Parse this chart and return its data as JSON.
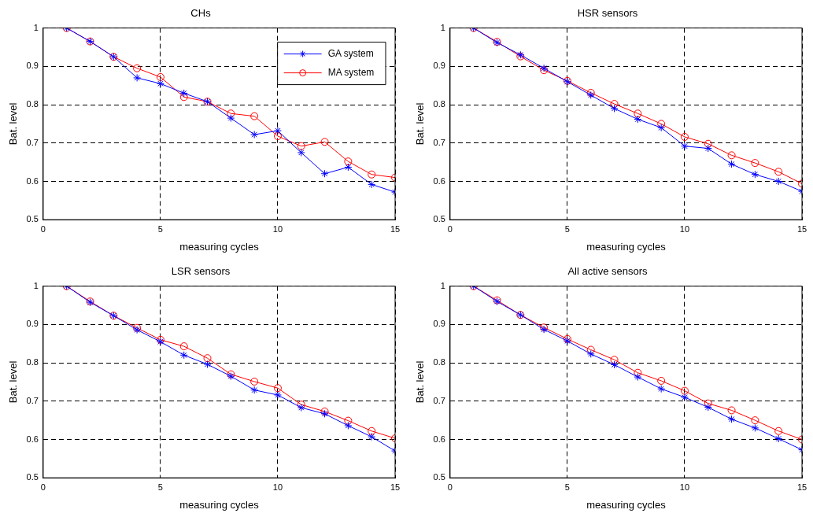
{
  "chart_data": [
    {
      "type": "line",
      "title": "CHs",
      "xlabel": "measuring cycles",
      "ylabel": "Bat. level",
      "x": [
        1,
        2,
        3,
        4,
        5,
        6,
        7,
        8,
        9,
        10,
        11,
        12,
        13,
        14,
        15
      ],
      "xlim": [
        0,
        15
      ],
      "xticks": [
        0,
        5,
        10,
        15
      ],
      "ylim": [
        0.5,
        1
      ],
      "yticks": [
        0.5,
        0.6,
        0.7,
        0.8,
        0.9,
        1
      ],
      "grid": true,
      "legend": "top right",
      "series": [
        {
          "name": "GA system",
          "color": "#0000ff",
          "marker": "cross",
          "values": [
            1,
            0.965,
            0.925,
            0.87,
            0.855,
            0.83,
            0.808,
            0.765,
            0.722,
            0.732,
            0.675,
            0.62,
            0.637,
            0.592,
            0.572
          ]
        },
        {
          "name": "MA system",
          "color": "#ff0000",
          "marker": "circle",
          "values": [
            1,
            0.965,
            0.925,
            0.895,
            0.872,
            0.82,
            0.808,
            0.777,
            0.77,
            0.718,
            0.692,
            0.703,
            0.652,
            0.618,
            0.61
          ]
        }
      ]
    },
    {
      "type": "line",
      "title": "HSR sensors",
      "xlabel": "measuring cycles",
      "ylabel": "Bat. level",
      "x": [
        1,
        2,
        3,
        4,
        5,
        6,
        7,
        8,
        9,
        10,
        11,
        12,
        13,
        14,
        15
      ],
      "xlim": [
        0,
        15
      ],
      "xticks": [
        0,
        5,
        10,
        15
      ],
      "ylim": [
        0.5,
        1
      ],
      "yticks": [
        0.5,
        0.6,
        0.7,
        0.8,
        0.9,
        1
      ],
      "grid": true,
      "series": [
        {
          "color": "#0000ff",
          "marker": "cross",
          "values": [
            1,
            0.962,
            0.93,
            0.895,
            0.86,
            0.825,
            0.79,
            0.762,
            0.74,
            0.692,
            0.686,
            0.645,
            0.618,
            0.6,
            0.574
          ]
        },
        {
          "color": "#ff0000",
          "marker": "circle",
          "values": [
            1,
            0.964,
            0.926,
            0.89,
            0.862,
            0.831,
            0.802,
            0.777,
            0.75,
            0.716,
            0.698,
            0.668,
            0.648,
            0.625,
            0.594
          ]
        }
      ]
    },
    {
      "type": "line",
      "title": "LSR sensors",
      "xlabel": "measuring cycles",
      "ylabel": "Bat. level",
      "x": [
        1,
        2,
        3,
        4,
        5,
        6,
        7,
        8,
        9,
        10,
        11,
        12,
        13,
        14,
        15
      ],
      "xlim": [
        0,
        15
      ],
      "xticks": [
        0,
        5,
        10,
        15
      ],
      "ylim": [
        0.5,
        1
      ],
      "yticks": [
        0.5,
        0.6,
        0.7,
        0.8,
        0.9,
        1
      ],
      "grid": true,
      "series": [
        {
          "color": "#0000ff",
          "marker": "cross",
          "values": [
            1,
            0.958,
            0.923,
            0.886,
            0.855,
            0.82,
            0.796,
            0.765,
            0.729,
            0.716,
            0.683,
            0.667,
            0.636,
            0.607,
            0.57
          ]
        },
        {
          "color": "#ff0000",
          "marker": "circle",
          "values": [
            1,
            0.96,
            0.923,
            0.891,
            0.86,
            0.843,
            0.812,
            0.77,
            0.751,
            0.734,
            0.691,
            0.673,
            0.649,
            0.622,
            0.603
          ]
        }
      ]
    },
    {
      "type": "line",
      "title": "All active sensors",
      "xlabel": "measuring cycles",
      "ylabel": "Bat. level",
      "x": [
        1,
        2,
        3,
        4,
        5,
        6,
        7,
        8,
        9,
        10,
        11,
        12,
        13,
        14,
        15
      ],
      "xlim": [
        0,
        15
      ],
      "xticks": [
        0,
        5,
        10,
        15
      ],
      "ylim": [
        0.5,
        1
      ],
      "yticks": [
        0.5,
        0.6,
        0.7,
        0.8,
        0.9,
        1
      ],
      "grid": true,
      "series": [
        {
          "color": "#0000ff",
          "marker": "cross",
          "values": [
            1,
            0.96,
            0.925,
            0.887,
            0.857,
            0.823,
            0.795,
            0.763,
            0.732,
            0.71,
            0.684,
            0.653,
            0.63,
            0.602,
            0.573
          ]
        },
        {
          "color": "#ff0000",
          "marker": "circle",
          "values": [
            1,
            0.963,
            0.925,
            0.892,
            0.862,
            0.834,
            0.808,
            0.774,
            0.753,
            0.727,
            0.694,
            0.676,
            0.65,
            0.622,
            0.6
          ]
        }
      ]
    }
  ]
}
